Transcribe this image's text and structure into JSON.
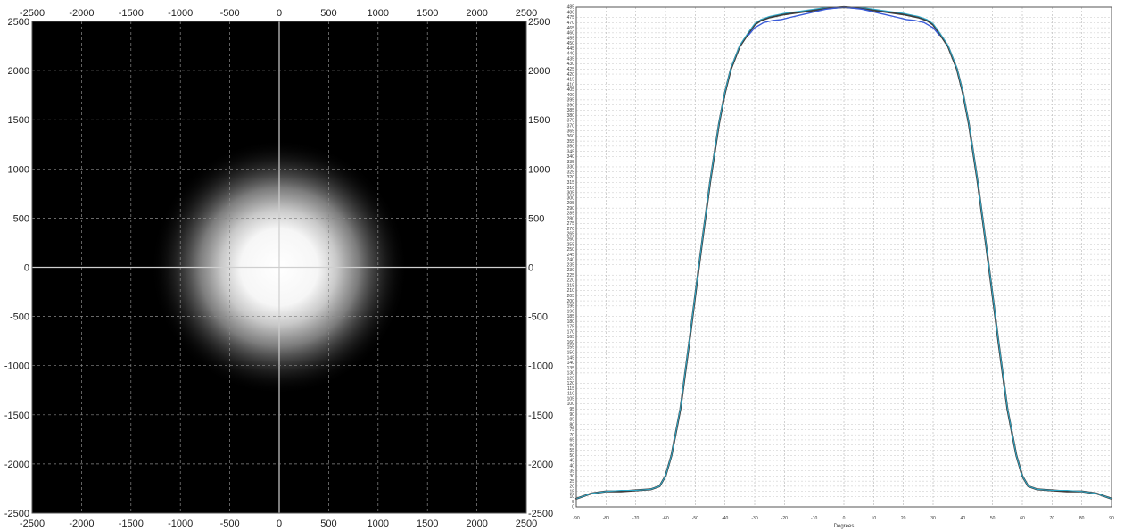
{
  "chart_data": [
    {
      "type": "heatmap",
      "title": "",
      "xlabel": "",
      "ylabel": "",
      "xlim": [
        -2500,
        2500
      ],
      "ylim": [
        -2500,
        2500
      ],
      "x_ticks": [
        -2500,
        -2000,
        -1500,
        -1000,
        -500,
        0,
        500,
        1000,
        1500,
        2000,
        2500
      ],
      "y_ticks": [
        -2500,
        -2000,
        -1500,
        -1000,
        -500,
        0,
        500,
        1000,
        1500,
        2000,
        2500
      ],
      "grid": true,
      "background": "#000000",
      "spot": {
        "center": [
          0,
          0
        ],
        "core_radius": 500,
        "outer_radius": 1300
      }
    },
    {
      "type": "line",
      "title": "",
      "xlabel": "Degrees",
      "ylabel": "",
      "xlim": [
        -90,
        90
      ],
      "ylim": [
        0,
        485
      ],
      "x_ticks": [
        -90,
        -80,
        -70,
        -60,
        -50,
        -40,
        -30,
        -20,
        -10,
        0,
        10,
        20,
        30,
        40,
        50,
        60,
        70,
        80,
        90
      ],
      "y_tick_step": 5,
      "grid": true,
      "series": [
        {
          "color": "#3d3d3d",
          "x": [
            -90,
            -85,
            -80,
            -75,
            -70,
            -65,
            -62,
            -60,
            -58,
            -55,
            -52,
            -50,
            -48,
            -45,
            -42,
            -40,
            -38,
            -35,
            -32,
            -30,
            -28,
            -25,
            -20,
            -15,
            -10,
            -5,
            0,
            5,
            10,
            15,
            20,
            25,
            28,
            30,
            32,
            35,
            38,
            40,
            42,
            45,
            48,
            50,
            52,
            55,
            58,
            60,
            62,
            65,
            70,
            75,
            80,
            85,
            90
          ],
          "y": [
            8,
            13,
            15,
            15,
            16,
            17,
            20,
            30,
            50,
            95,
            160,
            205,
            250,
            315,
            372,
            402,
            425,
            447,
            460,
            468,
            472,
            475,
            478,
            480,
            482,
            484,
            485,
            484,
            482,
            480,
            478,
            475,
            472,
            468,
            460,
            447,
            425,
            402,
            372,
            315,
            250,
            205,
            160,
            95,
            50,
            30,
            20,
            17,
            16,
            15,
            15,
            13,
            8
          ]
        },
        {
          "color": "#3a5bd9",
          "x": [
            -32,
            -30,
            -27,
            -24,
            -21,
            -18,
            -15,
            -12,
            -9,
            -6,
            -3,
            0,
            3,
            6,
            9,
            12,
            15,
            18,
            21,
            24,
            27,
            30,
            32
          ],
          "y": [
            458,
            465,
            470,
            472,
            473,
            475,
            477,
            479,
            481,
            483,
            484,
            485,
            484,
            483,
            481,
            479,
            477,
            475,
            473,
            472,
            470,
            465,
            458
          ]
        },
        {
          "color": "#2ea8c8",
          "x": [
            -90,
            -85,
            -80,
            -75,
            -70,
            -65,
            -62,
            -60,
            -58,
            -55,
            -52,
            -50,
            -48,
            -45,
            -42,
            -40,
            -38,
            -35,
            -32,
            -30,
            -28,
            -25,
            -20,
            -15,
            -10,
            -5,
            0,
            5,
            10,
            15,
            20,
            25,
            28,
            30,
            32,
            35,
            38,
            40,
            42,
            45,
            48,
            50,
            52,
            55,
            58,
            60,
            62,
            65,
            70,
            75,
            80,
            85,
            90
          ],
          "y": [
            8,
            13,
            15,
            16,
            16,
            17,
            20,
            30,
            50,
            96,
            161,
            206,
            251,
            316,
            373,
            403,
            426,
            448,
            461,
            469,
            473,
            476,
            479,
            481,
            483,
            485,
            485,
            485,
            483,
            481,
            479,
            476,
            473,
            469,
            461,
            448,
            426,
            403,
            373,
            316,
            251,
            206,
            161,
            96,
            50,
            30,
            20,
            17,
            16,
            16,
            15,
            13,
            8
          ]
        }
      ]
    }
  ]
}
